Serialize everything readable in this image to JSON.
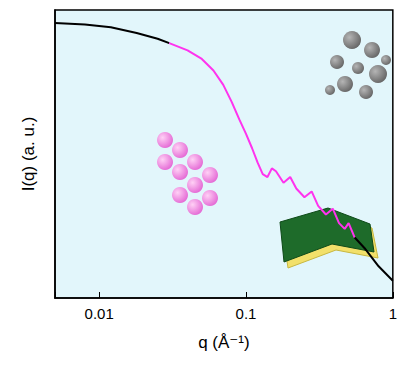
{
  "chart_data": {
    "type": "line",
    "x_label": "q (Å⁻¹)",
    "y_label": "I(q) (a. u.)",
    "log": "x",
    "grid": false,
    "tick_labels": "x",
    "xlim": [
      0.005,
      1
    ],
    "xticks": [
      0.01,
      0.1,
      1
    ],
    "ylim": [
      0,
      100
    ],
    "yticks": [],
    "series": [
      {
        "color": "#000000",
        "line_style": "solid",
        "x": [
          0.005,
          0.008,
          0.012,
          0.018,
          0.025,
          0.03
        ],
        "values": [
          95.5,
          95,
          94,
          92,
          90,
          88.5
        ]
      },
      {
        "color": "#ff33ee",
        "line_style": "solid",
        "x": [
          0.03,
          0.04,
          0.05,
          0.06,
          0.07,
          0.08,
          0.09,
          0.1,
          0.11,
          0.12,
          0.13,
          0.14,
          0.15,
          0.16,
          0.18,
          0.2,
          0.22,
          0.25,
          0.28,
          0.31,
          0.35,
          0.39,
          0.43,
          0.47,
          0.5,
          0.55
        ],
        "values": [
          88.5,
          86,
          83,
          79,
          74,
          68,
          62,
          57,
          52,
          47,
          43,
          42,
          45,
          44,
          40,
          42,
          38,
          35,
          37,
          32,
          29,
          31,
          26,
          24,
          26,
          21
        ]
      },
      {
        "color": "#000000",
        "line_style": "solid",
        "x": [
          0.55,
          0.65,
          0.8,
          1
        ],
        "values": [
          21,
          17,
          11,
          6
        ]
      }
    ]
  }
}
